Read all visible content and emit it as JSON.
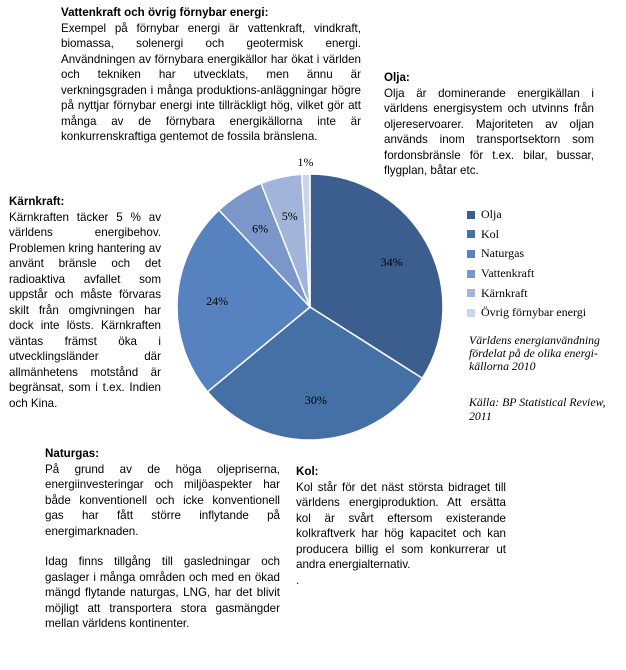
{
  "sections": {
    "vattenkraft": {
      "title": "Vattenkraft och övrig förnybar energi:",
      "body": "Exempel på förnybar energi är vattenkraft, vindkraft, biomassa, solenergi och geotermisk energi. Användningen av förnybara energikällor har ökat i världen och tekniken har utvecklats, men ännu är verkningsgraden i många produktions-anläggningar högre på nyttjar förnybar energi inte tillräckligt hög, vilket gör att många av de förnybara energikällorna inte är konkurrenskraftiga gentemot de fossila bränslena."
    },
    "olja": {
      "title": "Olja:",
      "body": "Olja är dominerande energikällan i världens energisystem och utvinns från oljereservoarer. Majoriteten av oljan används inom transportsektorn som fordonsbränsle för t.ex. bilar, bussar, flygplan, båtar etc."
    },
    "karnkraft": {
      "title": "Kärnkraft:",
      "body": "Kärnkraften täcker 5 % av världens energibehov. Problemen kring hantering av använt bränsle och det radioaktiva avfallet som uppstår och måste förvaras skilt från omgivningen har dock inte lösts. Kärnkraften väntas främst öka i utvecklingsländer där allmänhetens motstånd är begränsat, som i t.ex. Indien och Kina."
    },
    "naturgas": {
      "title": "Naturgas:",
      "body1": "På grund av de höga oljepriserna, energiinvesteringar och miljöaspekter har både konventionell och icke konventionell gas har fått större inflytande på energimarknaden.",
      "body2": "Idag finns tillgång till gasledningar och gaslager i många områden och med en ökad mängd flytande naturgas, LNG, har det blivit möjligt att transportera stora gasmängder mellan världens kontinenter."
    },
    "kol": {
      "title": "Kol:",
      "body": "Kol står för det näst största bidraget till världens energiproduktion. Att ersätta kol är svårt eftersom existerande kolkraftverk har hög kapacitet och kan producera billig el som konkurrerar ut andra energialternativ.",
      "trailing": "."
    }
  },
  "chart_data": {
    "type": "pie",
    "categories": [
      "Olja",
      "Kol",
      "Naturgas",
      "Vattenkraft",
      "Kärnkraft",
      "Övrig förnybar energi"
    ],
    "values": [
      34,
      30,
      24,
      6,
      5,
      1
    ],
    "data_labels": [
      "34%",
      "30%",
      "24%",
      "6%",
      "5%",
      "1%"
    ],
    "colors": [
      "#3b5e8f",
      "#4470a5",
      "#5683bf",
      "#7b96c8",
      "#a2b4d9",
      "#cbd5ea"
    ],
    "start_angle_deg": 0,
    "direction": "clockwise",
    "legend_position": "right",
    "caption": "Världens energianvändning fördelat på de olika energi-källorna 2010",
    "source": "Källa: BP Statistical Review, 2011"
  }
}
